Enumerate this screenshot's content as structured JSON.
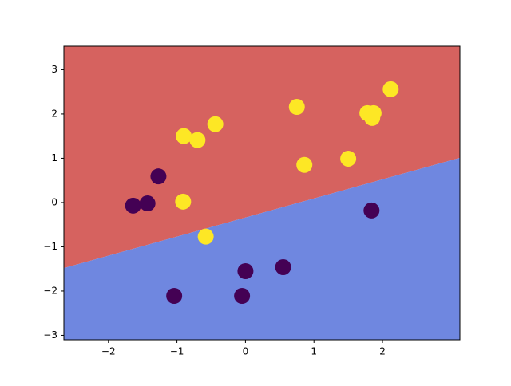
{
  "chart_data": {
    "type": "scatter",
    "xlim": [
      -2.65,
      3.13
    ],
    "ylim": [
      -3.1,
      3.53
    ],
    "xticks": [
      {
        "value": -2,
        "label": "−2"
      },
      {
        "value": -1,
        "label": "−1"
      },
      0,
      1,
      2
    ],
    "yticks": [
      {
        "value": -3,
        "label": "−3"
      },
      {
        "value": -2,
        "label": "−2"
      },
      {
        "value": -1,
        "label": "−1"
      },
      0,
      1,
      2,
      3
    ],
    "boundary": {
      "x": [
        -2.65,
        3.13
      ],
      "y": [
        -1.48,
        1.01
      ],
      "above_color": "#d6625f",
      "below_color": "#6f87e0"
    },
    "series": [
      {
        "color": "#440154",
        "x": [
          -1.64,
          -1.43,
          -1.27,
          1.84,
          0.0,
          0.55,
          -1.04,
          -0.05
        ],
        "values": [
          -0.07,
          -0.02,
          0.59,
          -0.18,
          -1.55,
          -1.46,
          -2.11,
          -2.11
        ]
      },
      {
        "color": "#fde725",
        "x": [
          2.12,
          0.75,
          1.78,
          1.87,
          1.85,
          1.5,
          0.86,
          -0.44,
          -0.9,
          -0.7,
          -0.91,
          -0.58
        ],
        "values": [
          2.56,
          2.16,
          2.02,
          2.02,
          1.91,
          0.99,
          0.85,
          1.77,
          1.5,
          1.41,
          0.02,
          -0.77
        ]
      }
    ]
  }
}
